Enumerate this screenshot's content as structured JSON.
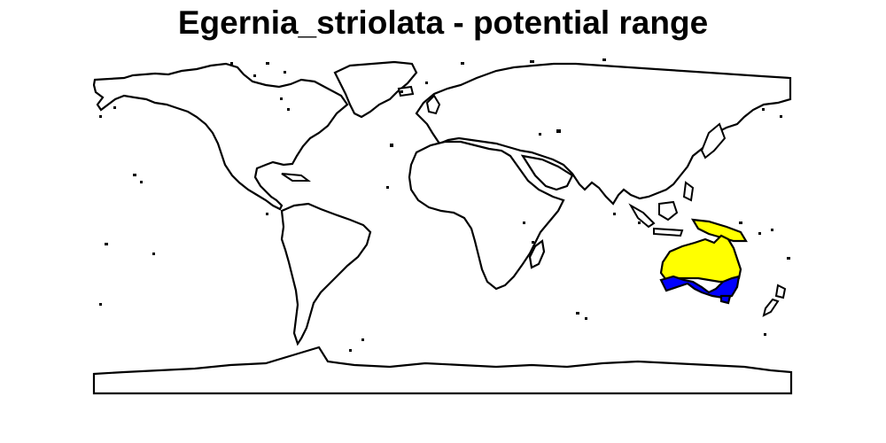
{
  "title": "Egernia_striolata - potential range",
  "colors": {
    "land_fill": "#ffffff",
    "coastline": "#000000",
    "potential_range": "#ffff00",
    "core_range": "#0000ff"
  },
  "map": {
    "projection": "plate-carree",
    "extent": {
      "lon": [
        -180,
        180
      ],
      "lat": [
        -90,
        90
      ]
    },
    "range_region": "Australia"
  }
}
